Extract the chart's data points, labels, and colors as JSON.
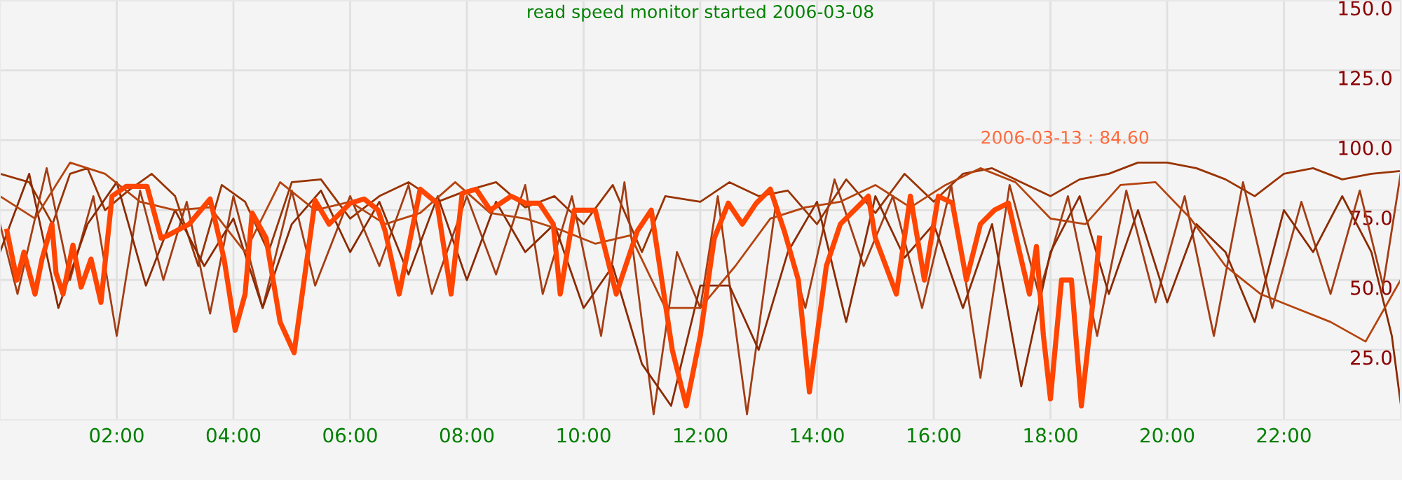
{
  "chart_data": {
    "type": "line",
    "title": "read speed monitor started 2006-03-08",
    "annotations": [
      "2006-03-13 : 84.60"
    ],
    "xlim": [
      0,
      24
    ],
    "xticks": [
      {
        "value": 2,
        "label": "02:00"
      },
      {
        "value": 4,
        "label": "04:00"
      },
      {
        "value": 6,
        "label": "06:00"
      },
      {
        "value": 8,
        "label": "08:00"
      },
      {
        "value": 10,
        "label": "10:00"
      },
      {
        "value": 12,
        "label": "12:00"
      },
      {
        "value": 14,
        "label": "14:00"
      },
      {
        "value": 16,
        "label": "16:00"
      },
      {
        "value": 18,
        "label": "18:00"
      },
      {
        "value": 20,
        "label": "20:00"
      },
      {
        "value": 22,
        "label": "22:00"
      }
    ],
    "ylim": [
      0,
      150
    ],
    "yticks": [
      {
        "value": 25,
        "label": "25.0"
      },
      {
        "value": 50,
        "label": "50.0"
      },
      {
        "value": 75,
        "label": "75.0"
      },
      {
        "value": 100,
        "label": "100.0"
      },
      {
        "value": 125,
        "label": "125.0"
      },
      {
        "value": 150,
        "label": "150.0"
      }
    ],
    "grid": true,
    "legend": false,
    "marker": "none",
    "line_style": "solid",
    "series": [
      {
        "color": "#993300",
        "x": [
          0,
          0.5,
          0.9,
          1.2,
          1.5,
          1.8,
          2.2,
          2.6,
          3.0,
          3.4,
          3.8,
          4.2,
          4.6,
          5.0,
          5.5,
          6.0,
          6.5,
          7.0,
          7.5,
          8.0,
          8.5,
          9.0,
          9.5,
          10.0,
          10.5,
          11.0,
          11.4,
          12.0,
          12.5,
          13.0,
          13.5,
          14.0,
          14.5,
          15.0,
          15.5,
          16.0,
          16.5,
          17.0,
          17.5,
          18.0,
          18.5,
          19.0,
          19.5,
          20.0,
          20.5,
          21.0,
          21.5,
          22.0,
          22.5,
          23.0,
          23.5,
          24.0
        ],
        "values": [
          88,
          85,
          70,
          88,
          90,
          75,
          82,
          88,
          80,
          55,
          84,
          78,
          60,
          85,
          86,
          72,
          80,
          85,
          78,
          82,
          85,
          76,
          80,
          70,
          84,
          60,
          80,
          78,
          85,
          80,
          82,
          70,
          86,
          74,
          88,
          78,
          88,
          90,
          85,
          80,
          86,
          88,
          92,
          92,
          90,
          86,
          80,
          88,
          90,
          86,
          88,
          89
        ]
      },
      {
        "color": "#a33d14",
        "x": [
          0,
          0.3,
          0.8,
          1.2,
          1.6,
          2.0,
          2.4,
          2.8,
          3.2,
          3.6,
          4.0,
          4.5,
          5.0,
          5.4,
          6.0,
          6.5,
          7.0,
          7.4,
          8.0,
          8.5,
          9.0,
          9.3,
          9.8,
          10.3,
          10.7,
          11.2,
          11.6,
          12.0,
          12.3,
          12.8,
          13.3,
          13.8,
          14.3,
          14.8,
          15.3,
          15.8,
          16.3,
          16.8,
          17.3,
          17.8,
          18.3,
          18.8,
          19.3,
          19.8,
          20.3,
          20.8,
          21.3,
          21.8,
          22.3,
          22.8,
          23.3,
          23.7,
          24.0
        ],
        "values": [
          70,
          45,
          90,
          50,
          80,
          30,
          82,
          50,
          78,
          38,
          80,
          40,
          82,
          48,
          80,
          55,
          84,
          45,
          80,
          52,
          84,
          45,
          80,
          30,
          85,
          2,
          60,
          40,
          80,
          2,
          78,
          40,
          86,
          55,
          80,
          40,
          84,
          15,
          84,
          45,
          80,
          30,
          82,
          42,
          80,
          30,
          85,
          40,
          78,
          45,
          82,
          48,
          88
        ]
      },
      {
        "color": "#8b2a00",
        "x": [
          0,
          0.5,
          1.0,
          1.5,
          2.0,
          2.5,
          3.0,
          3.5,
          4.0,
          4.5,
          5.0,
          5.5,
          6.0,
          6.5,
          7.0,
          7.5,
          8.0,
          8.5,
          9.0,
          9.5,
          10.0,
          10.5,
          11.0,
          11.5,
          12.0,
          12.5,
          13.0,
          13.5,
          14.0,
          14.5,
          15.0,
          15.5,
          16.0,
          16.5,
          17.0,
          17.5,
          18.0,
          18.5,
          19.0,
          19.5,
          20.0,
          20.5,
          21.0,
          21.5,
          22.0,
          22.5,
          23.0,
          23.5,
          23.85,
          24.0
        ],
        "values": [
          60,
          88,
          40,
          70,
          85,
          48,
          75,
          55,
          72,
          40,
          70,
          82,
          60,
          78,
          52,
          80,
          50,
          78,
          60,
          70,
          40,
          55,
          20,
          5,
          48,
          48,
          25,
          60,
          78,
          35,
          80,
          58,
          70,
          40,
          70,
          12,
          60,
          80,
          45,
          75,
          42,
          70,
          60,
          35,
          75,
          60,
          80,
          60,
          30,
          6
        ]
      },
      {
        "color": "#b5440f",
        "x": [
          0,
          0.6,
          1.2,
          1.8,
          2.4,
          3.0,
          3.6,
          4.2,
          4.8,
          5.4,
          6.0,
          6.6,
          7.2,
          7.8,
          8.4,
          9.0,
          9.6,
          10.2,
          10.8,
          11.4,
          12.0,
          12.6,
          13.2,
          13.8,
          14.4,
          15.0,
          15.6,
          16.2,
          16.8,
          17.4,
          18.0,
          18.6,
          19.2,
          19.8,
          20.4,
          21.0,
          21.6,
          22.2,
          22.8,
          23.4,
          24.0
        ],
        "values": [
          80,
          72,
          92,
          88,
          78,
          75,
          76,
          60,
          85,
          75,
          78,
          70,
          74,
          85,
          74,
          72,
          68,
          63,
          66,
          40,
          40,
          55,
          72,
          76,
          78,
          84,
          76,
          84,
          90,
          85,
          72,
          70,
          84,
          85,
          72,
          55,
          45,
          40,
          35,
          28,
          50
        ]
      },
      {
        "color": "#ff4500",
        "x": [
          0.12,
          0.29,
          0.41,
          0.6,
          0.72,
          0.89,
          0.96,
          1.08,
          1.25,
          1.39,
          1.56,
          1.73,
          1.92,
          2.16,
          2.52,
          2.76,
          2.88,
          3.24,
          3.6,
          3.84,
          4.03,
          4.2,
          4.32,
          4.56,
          4.8,
          5.04,
          5.4,
          5.64,
          6.0,
          6.24,
          6.48,
          6.6,
          6.84,
          7.2,
          7.49,
          7.73,
          7.92,
          8.16,
          8.4,
          8.76,
          9.0,
          9.24,
          9.48,
          9.6,
          9.84,
          10.2,
          10.56,
          10.92,
          11.16,
          11.52,
          11.76,
          12.0,
          12.24,
          12.48,
          12.72,
          12.96,
          13.2,
          13.44,
          13.68,
          13.87,
          14.16,
          14.4,
          14.88,
          15.0,
          15.36,
          15.6,
          15.84,
          16.08,
          16.32,
          16.56,
          16.8,
          17.04,
          17.28,
          17.47,
          17.64,
          17.76,
          17.88,
          18.0,
          18.19,
          18.36,
          18.53,
          18.77,
          18.84
        ],
        "values": [
          67.5,
          50,
          60,
          45,
          57.5,
          70,
          52.5,
          45,
          62.5,
          47.5,
          57.5,
          42,
          80,
          83.5,
          83.5,
          65,
          66,
          70,
          79,
          57.5,
          32,
          45,
          74,
          65,
          35,
          24,
          78.5,
          70,
          77.5,
          79,
          75,
          67.5,
          45,
          82.5,
          77.5,
          45,
          81,
          82.5,
          75,
          80,
          77.5,
          77.5,
          70,
          45,
          75,
          75,
          45,
          67.5,
          75,
          25,
          5,
          30,
          65,
          77.5,
          70,
          77.5,
          82.5,
          67.5,
          50,
          10,
          55,
          70,
          80,
          65,
          45,
          80,
          50,
          80,
          77.5,
          50,
          70,
          75,
          77.5,
          60,
          45,
          62,
          30,
          7.5,
          50,
          50,
          5,
          50,
          65
        ]
      }
    ]
  }
}
